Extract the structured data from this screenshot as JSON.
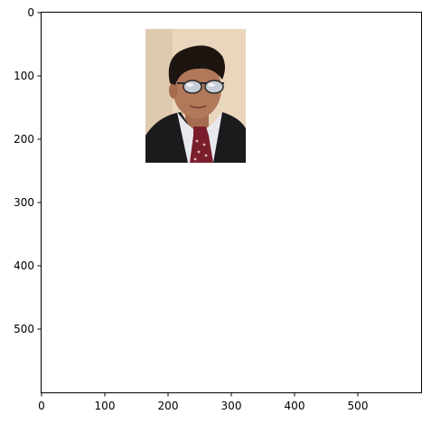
{
  "figure": {
    "background": "#ffffff",
    "axes_color": "#000000"
  },
  "image_content": {
    "description_icon": "portrait-photo",
    "colors": {
      "backdrop": "#e9d6bd",
      "hair": "#1d1510",
      "skin": "#b2785a",
      "suit": "#1b1a1d",
      "shirt": "#e8e9ee",
      "tie": "#7a1e2c",
      "tie_dots": "#e6b7bf",
      "sunglasses_lens": "#c7cdd6",
      "sunglasses_frame": "#2a2a2a"
    }
  },
  "axes": {
    "x_ticks": [
      "0",
      "100",
      "200",
      "300",
      "400",
      "500"
    ],
    "y_ticks": [
      "0",
      "100",
      "200",
      "300",
      "400",
      "500"
    ],
    "xlim": [
      0,
      600
    ],
    "ylim": [
      600,
      0
    ]
  }
}
